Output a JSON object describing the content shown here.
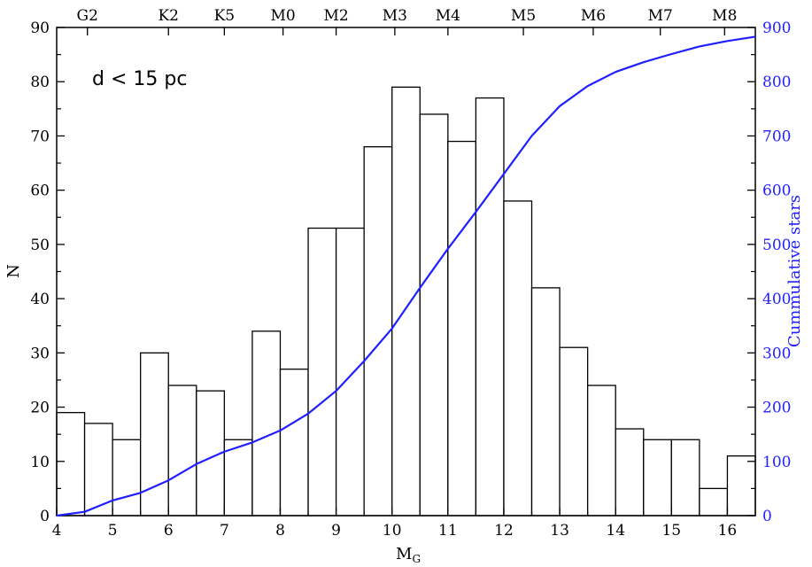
{
  "chart_data": {
    "type": "bar",
    "annotation": "d < 15 pc",
    "xlabel": "M",
    "xlabel_sub": "G",
    "ylabel": "N",
    "y2label": "Cummulative stars",
    "xlim": [
      4,
      16.5
    ],
    "ylim": [
      0,
      90
    ],
    "y2lim": [
      0,
      900
    ],
    "bin_width": 0.5,
    "x_ticks": [
      4,
      5,
      6,
      7,
      8,
      9,
      10,
      11,
      12,
      13,
      14,
      15,
      16
    ],
    "y_ticks": [
      0,
      10,
      20,
      30,
      40,
      50,
      60,
      70,
      80,
      90
    ],
    "y2_ticks": [
      0,
      100,
      200,
      300,
      400,
      500,
      600,
      700,
      800,
      900
    ],
    "bins": [
      {
        "x": 4.0,
        "n": 19
      },
      {
        "x": 4.5,
        "n": 17
      },
      {
        "x": 5.0,
        "n": 14
      },
      {
        "x": 5.5,
        "n": 30
      },
      {
        "x": 6.0,
        "n": 24
      },
      {
        "x": 6.5,
        "n": 23
      },
      {
        "x": 7.0,
        "n": 14
      },
      {
        "x": 7.5,
        "n": 34
      },
      {
        "x": 8.0,
        "n": 27
      },
      {
        "x": 8.5,
        "n": 53
      },
      {
        "x": 9.0,
        "n": 53
      },
      {
        "x": 9.5,
        "n": 68
      },
      {
        "x": 10.0,
        "n": 79
      },
      {
        "x": 10.5,
        "n": 74
      },
      {
        "x": 11.0,
        "n": 69
      },
      {
        "x": 11.5,
        "n": 77
      },
      {
        "x": 12.0,
        "n": 58
      },
      {
        "x": 12.5,
        "n": 42
      },
      {
        "x": 13.0,
        "n": 31
      },
      {
        "x": 13.5,
        "n": 24
      },
      {
        "x": 14.0,
        "n": 16
      },
      {
        "x": 14.5,
        "n": 14
      },
      {
        "x": 15.0,
        "n": 14
      },
      {
        "x": 15.5,
        "n": 5
      },
      {
        "x": 16.0,
        "n": 11
      }
    ],
    "cumulative": {
      "color": "#1f1fff",
      "x": [
        4.0,
        4.5,
        5.0,
        5.5,
        6.0,
        6.5,
        7.0,
        7.5,
        8.0,
        8.5,
        9.0,
        9.5,
        10.0,
        10.5,
        11.0,
        11.5,
        12.0,
        12.5,
        13.0,
        13.5,
        14.0,
        14.5,
        15.0,
        15.5,
        16.0,
        16.5
      ],
      "y": [
        0,
        7,
        28,
        42,
        65,
        95,
        118,
        135,
        157,
        188,
        230,
        285,
        345,
        420,
        492,
        560,
        630,
        700,
        755,
        792,
        818,
        836,
        851,
        865,
        875,
        883
      ]
    },
    "spectral_types": [
      {
        "label": "G2",
        "x": 4.55
      },
      {
        "label": "K2",
        "x": 6.0
      },
      {
        "label": "K5",
        "x": 7.0
      },
      {
        "label": "M0",
        "x": 8.05
      },
      {
        "label": "M2",
        "x": 9.0
      },
      {
        "label": "M3",
        "x": 10.05
      },
      {
        "label": "M4",
        "x": 11.0
      },
      {
        "label": "M5",
        "x": 12.35
      },
      {
        "label": "M6",
        "x": 13.6
      },
      {
        "label": "M7",
        "x": 14.8
      },
      {
        "label": "M8",
        "x": 15.95
      }
    ]
  }
}
